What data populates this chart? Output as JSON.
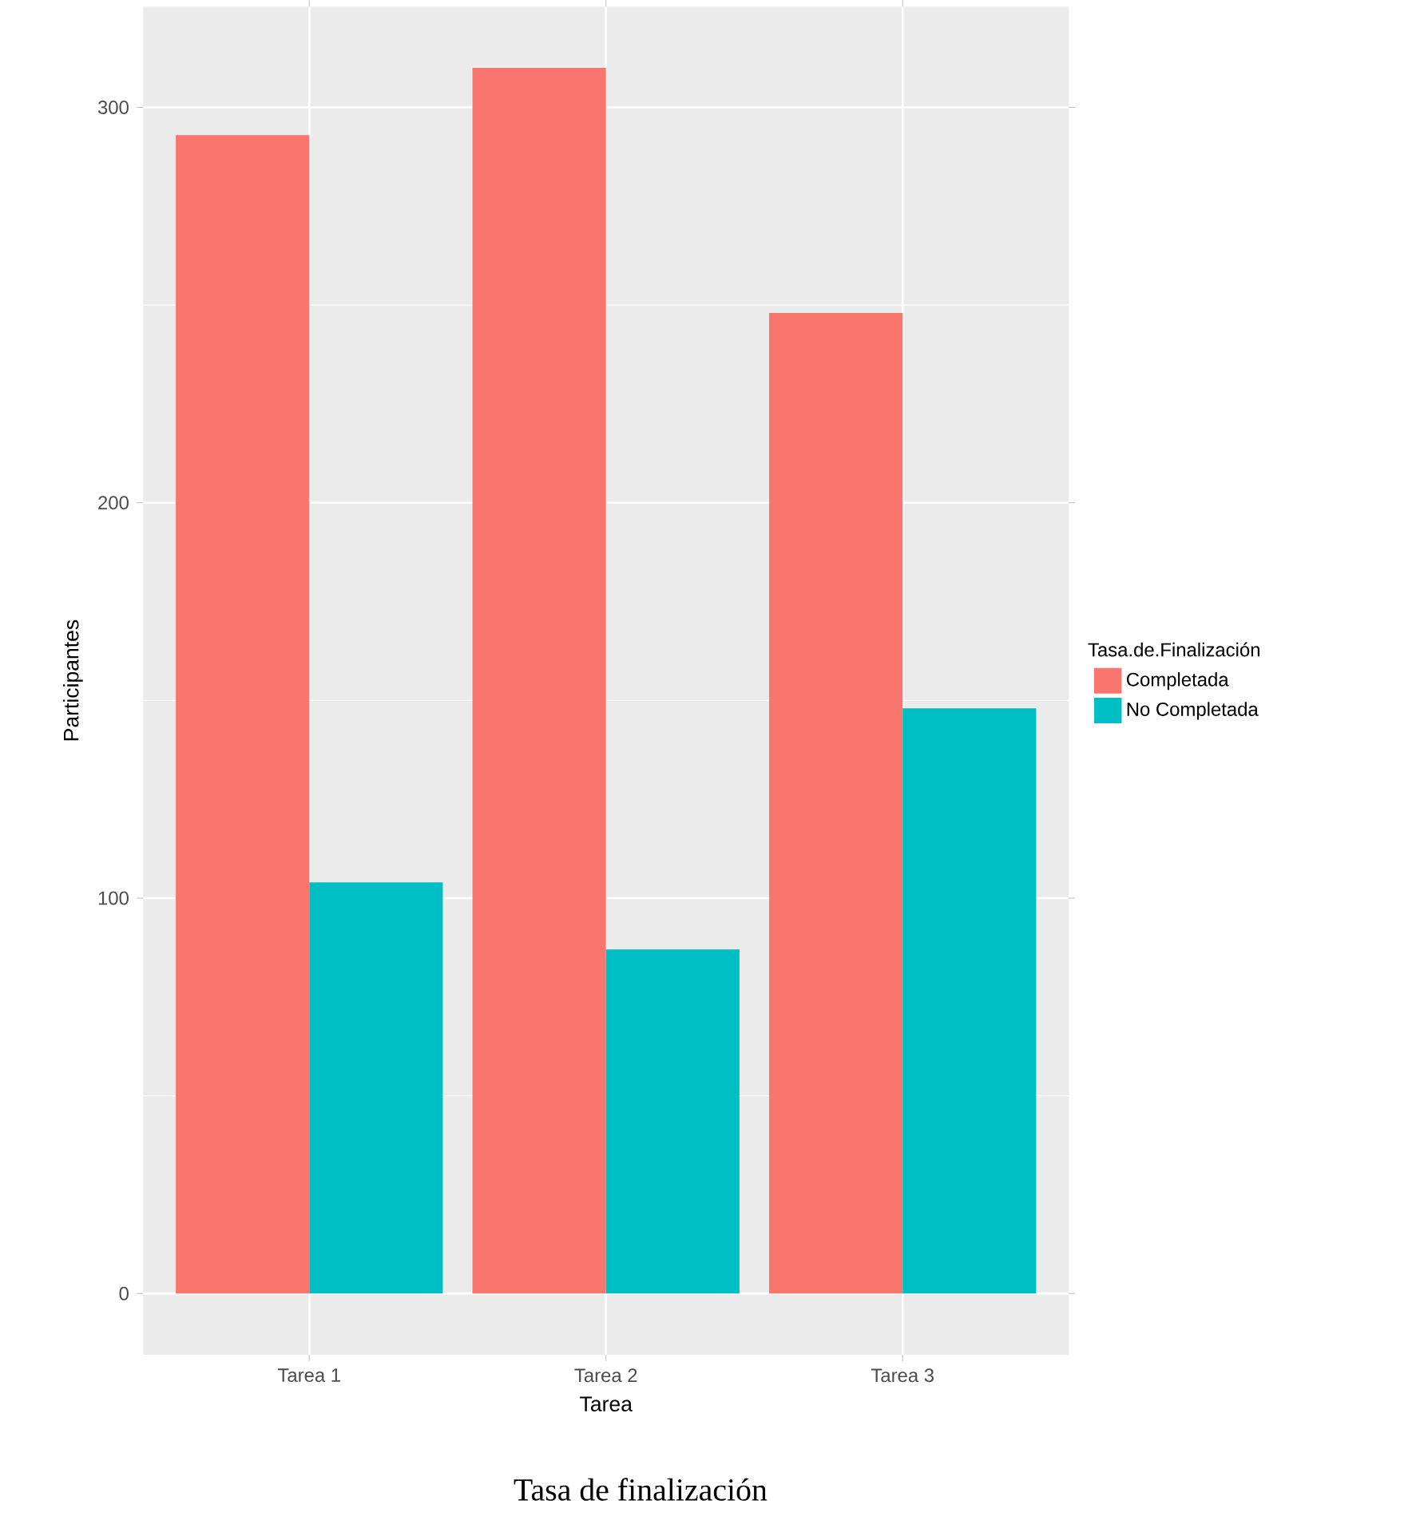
{
  "chart_data": {
    "type": "bar",
    "title": "Tasa de finalización",
    "xlabel": "Tarea",
    "ylabel": "Participantes",
    "legend_title": "Tasa.de.Finalización",
    "categories": [
      "Tarea 1",
      "Tarea 2",
      "Tarea 3"
    ],
    "series": [
      {
        "name": "Completada",
        "color": "#f8766d",
        "values": [
          293,
          310,
          248
        ]
      },
      {
        "name": "No Completada",
        "color": "#00bfc4",
        "values": [
          104,
          87,
          148
        ]
      }
    ],
    "ylim": [
      -15.5,
      325.5
    ],
    "yticks": [
      0,
      100,
      200,
      300
    ],
    "grid": true,
    "legend": "right"
  }
}
